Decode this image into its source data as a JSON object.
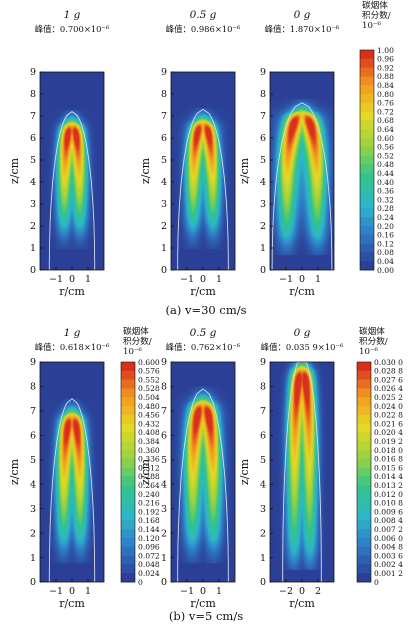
{
  "figure": {
    "caption_a": "(a) v=30 cm/s",
    "caption_b": "(b) v=5 cm/s",
    "colorbar_title": [
      "碳烟体",
      "积分数/",
      "10⁻⁶"
    ],
    "axes_ylabel": "z/cm",
    "axes_xlabel": "r/cm"
  },
  "chart_data": [
    {
      "type": "heatmap",
      "panel": "a-1g",
      "title": "1 g",
      "subtitle": "峰值：0.700×10⁻⁶",
      "peak": 0.7,
      "xlabel": "r/cm",
      "ylabel": "z/cm",
      "xlim": [
        -1.2,
        1.2
      ],
      "ylim": [
        0,
        9
      ],
      "xticks": [
        "−1",
        "0",
        "1"
      ],
      "yticks": [
        "0",
        "1",
        "2",
        "3",
        "4",
        "5",
        "6",
        "7",
        "8",
        "9"
      ],
      "flame": {
        "wing_r": 0.3,
        "top": 6.7,
        "start": 1.6,
        "sigma": 0.2
      },
      "outline": {
        "r": 0.85,
        "top": 7.2
      }
    },
    {
      "type": "heatmap",
      "panel": "a-0.5g",
      "title": "0.5 g",
      "subtitle": "峰值：0.986×10⁻⁶",
      "peak": 0.986,
      "xlabel": "r/cm",
      "ylabel": "z/cm",
      "xlim": [
        -1.2,
        1.2
      ],
      "ylim": [
        0,
        9
      ],
      "xticks": [
        "−1",
        "0",
        "1"
      ],
      "yticks": [
        "0",
        "1",
        "2",
        "3",
        "4",
        "5",
        "6",
        "7",
        "8",
        "9"
      ],
      "flame": {
        "wing_r": 0.38,
        "top": 6.8,
        "start": 1.6,
        "sigma": 0.2
      },
      "outline": {
        "r": 0.95,
        "top": 7.3
      }
    },
    {
      "type": "heatmap",
      "panel": "a-0g",
      "title": "0 g",
      "subtitle": "峰值：1.870×10⁻⁶",
      "peak": 1.87,
      "xlabel": "r/cm",
      "ylabel": "z/cm",
      "xlim": [
        -1.2,
        1.2
      ],
      "ylim": [
        0,
        9
      ],
      "xticks": [
        "−1",
        "0",
        "1"
      ],
      "yticks": [
        "0",
        "1",
        "2",
        "3",
        "4",
        "5",
        "6",
        "7",
        "8",
        "9"
      ],
      "flame": {
        "wing_r": 0.58,
        "top": 7.2,
        "start": 1.1,
        "sigma": 0.24
      },
      "outline": {
        "r": 1.12,
        "top": 7.6
      }
    },
    {
      "type": "heatmap",
      "panel": "b-1g",
      "title": "1 g",
      "subtitle": "峰值：0.618×10⁻⁶",
      "peak": 0.618,
      "xlabel": "r/cm",
      "ylabel": "z/cm",
      "xlim": [
        -1.2,
        1.2
      ],
      "ylim": [
        0,
        9
      ],
      "xticks": [
        "−1",
        "0",
        "1"
      ],
      "yticks": [
        "0",
        "1",
        "2",
        "3",
        "4",
        "5",
        "6",
        "7",
        "8",
        "9"
      ],
      "flame": {
        "wing_r": 0.32,
        "top": 6.9,
        "start": 1.3,
        "sigma": 0.2
      },
      "outline": {
        "r": 0.85,
        "top": 7.5
      }
    },
    {
      "type": "heatmap",
      "panel": "b-0.5g",
      "title": "0.5 g",
      "subtitle": "峰值：0.762×10⁻⁶",
      "peak": 0.762,
      "xlabel": "r/cm",
      "ylabel": "z/cm",
      "xlim": [
        -1.2,
        1.2
      ],
      "ylim": [
        0,
        9
      ],
      "xticks": [
        "−1",
        "0",
        "1"
      ],
      "yticks": [
        "0",
        "1",
        "2",
        "3",
        "4",
        "5",
        "6",
        "7",
        "8",
        "9"
      ],
      "flame": {
        "wing_r": 0.4,
        "top": 7.4,
        "start": 1.3,
        "sigma": 0.22
      },
      "outline": {
        "r": 0.95,
        "top": 7.9
      }
    },
    {
      "type": "heatmap",
      "panel": "b-0g",
      "title": "0 g",
      "subtitle": "峰值：0.035 9×10⁻⁶",
      "peak": 0.0359,
      "xlabel": "r/cm",
      "ylabel": "z/cm",
      "xlim": [
        -2.4,
        2.4
      ],
      "ylim": [
        0,
        9
      ],
      "xticks": [
        "−2",
        "0",
        "2"
      ],
      "yticks": [
        "0",
        "1",
        "2",
        "3",
        "4",
        "5",
        "6",
        "7",
        "8",
        "9"
      ],
      "flame": {
        "wing_r": 0.6,
        "top": 8.8,
        "start": 0.8,
        "sigma": 0.4
      },
      "outline": {
        "r": 1.45,
        "top": 9.2
      }
    }
  ],
  "colorbars": [
    {
      "id": "cb-a",
      "ticks": [
        "1.00",
        "0.96",
        "0.92",
        "0.88",
        "0.84",
        "0.80",
        "0.76",
        "0.72",
        "0.68",
        "0.64",
        "0.60",
        "0.56",
        "0.52",
        "0.48",
        "0.44",
        "0.40",
        "0.36",
        "0.32",
        "0.28",
        "0.24",
        "0.20",
        "0.16",
        "0.12",
        "0.08",
        "0.04",
        "0.00"
      ]
    },
    {
      "id": "cb-b1",
      "ticks": [
        "0.600",
        "0.576",
        "0.552",
        "0.528",
        "0.504",
        "0.480",
        "0.456",
        "0.432",
        "0.408",
        "0.384",
        "0.360",
        "0.336",
        "0.312",
        "0.288",
        "0.264",
        "0.240",
        "0.216",
        "0.192",
        "0.168",
        "0.144",
        "0.120",
        "0.096",
        "0.072",
        "0.048",
        "0.024",
        "0"
      ]
    },
    {
      "id": "cb-b2",
      "ticks": [
        "0.030 0",
        "0.028 8",
        "0.027 6",
        "0.026 4",
        "0.025 2",
        "0.024 0",
        "0.022 8",
        "0.021 6",
        "0.020 4",
        "0.019 2",
        "0.018 0",
        "0.016 8",
        "0.015 6",
        "0.014 4",
        "0.013 2",
        "0.012 0",
        "0.010 8",
        "0.009 6",
        "0.008 4",
        "0.007 2",
        "0.006 0",
        "0.004 8",
        "0.003 6",
        "0.002 4",
        "0.001 2",
        "0"
      ]
    }
  ],
  "colormap": {
    "stops": [
      "#2b3f96",
      "#2f78c4",
      "#2db6c9",
      "#32c48a",
      "#9bd33e",
      "#e6d825",
      "#f39a1f",
      "#d7301c"
    ]
  }
}
